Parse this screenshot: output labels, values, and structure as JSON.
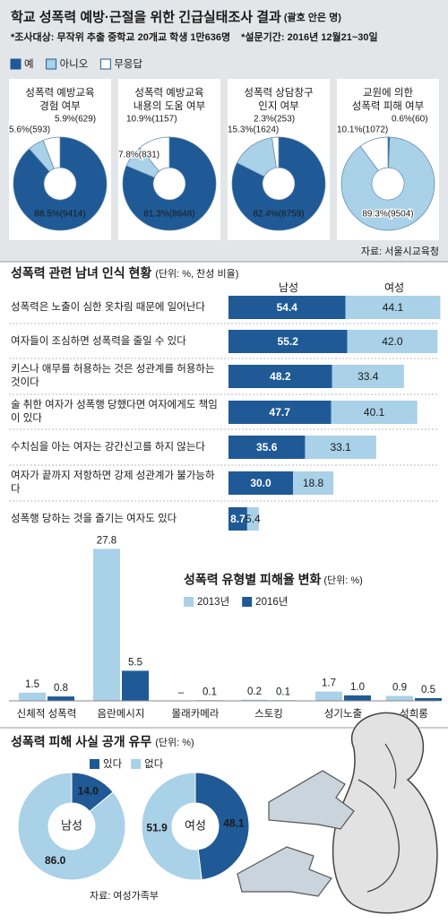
{
  "header": {
    "title": "학교 성폭력 예방·근절을 위한 긴급실태조사 결과",
    "title_note": "(괄호 안은 명)",
    "survey_target": "*조사대상: 무작위 추출 중학교 20개교 학생 1만636명",
    "survey_period": "*설문기간: 2016년 12월21~30일"
  },
  "chart_data": [
    {
      "type": "pie",
      "categories": [
        "예",
        "아니오",
        "무응답"
      ],
      "colors": [
        "#1f5a96",
        "#a9d1e8",
        "#ffffff"
      ],
      "pies": [
        {
          "title": [
            "성폭력 예방교육",
            "경험 여부"
          ],
          "values": [
            88.5,
            5.6,
            5.9
          ],
          "counts": [
            9414,
            593,
            629
          ],
          "value_labels": [
            "88.5%(9414)",
            "5.6%(593)",
            "5.9%(629)"
          ]
        },
        {
          "title": [
            "성폭력 예방교육",
            "내용의 도움 여부"
          ],
          "values": [
            81.3,
            7.8,
            10.9
          ],
          "counts": [
            8648,
            831,
            1157
          ],
          "value_labels": [
            "81.3%(8648)",
            "7.8%(831)",
            "10.9%(1157)"
          ]
        },
        {
          "title": [
            "성폭력 상담창구",
            "인지 여부"
          ],
          "values": [
            82.4,
            15.3,
            2.3
          ],
          "counts": [
            8759,
            1624,
            253
          ],
          "value_labels": [
            "82.4%(8759)",
            "15.3%(1624)",
            "2.3%(253)"
          ]
        },
        {
          "title": [
            "교원에 의한",
            "성폭력 피해 여부"
          ],
          "values": [
            0.6,
            89.3,
            10.1
          ],
          "counts": [
            60,
            9504,
            1072
          ],
          "value_labels": [
            "0.6%(60)",
            "89.3%(9504)",
            "10.1%(1072)"
          ]
        }
      ],
      "source": "자료: 서울시교육청"
    },
    {
      "type": "barh",
      "title": "성폭력 관련 남녀 인식 현황",
      "subtitle": "(단위: %, 찬성 비율)",
      "categories": [
        "성폭력은 노출이 심한 옷차림 때문에 일어난다",
        "여자들이 조심하면 성폭력을 줄일 수 있다",
        "키스나 애무를 허용하는 것은 성관계를 허용하는 것이다",
        "술 취한 여자가 성폭행 당했다면 여자에게도 책임이 있다",
        "수치심을 아는 여자는 강간신고를 하지 않는다",
        "여자가 끝까지 저항하면 강제 성관계가 불가능하다",
        "성폭행 당하는 것을 즐기는 여자도 있다"
      ],
      "series": [
        {
          "name": "남성",
          "color": "#1f5a96",
          "values": [
            54.4,
            55.2,
            48.2,
            47.7,
            35.6,
            30.0,
            8.7
          ],
          "value_labels": [
            "54.4",
            "55.2",
            "48.2",
            "47.7",
            "35.6",
            "30.0",
            "8.7"
          ]
        },
        {
          "name": "여성",
          "color": "#a9d1e8",
          "values": [
            44.1,
            42.0,
            33.4,
            40.1,
            33.1,
            18.8,
            5.4
          ],
          "value_labels": [
            "44.1",
            "42.0",
            "33.4",
            "40.1",
            "33.1",
            "18.8",
            "5.4"
          ]
        }
      ]
    },
    {
      "type": "bar",
      "title": "성폭력 유형별 피해율 변화",
      "subtitle": "(단위: %)",
      "categories": [
        "신체적 성폭력",
        "음란메시지",
        "몰래카메라",
        "스토킹",
        "성기노출",
        "성희롱"
      ],
      "series": [
        {
          "name": "2013년",
          "color": "#a9d1e8",
          "values": [
            1.5,
            27.8,
            null,
            0.2,
            1.7,
            0.9
          ],
          "value_labels": [
            "1.5",
            "27.8",
            "–",
            "0.2",
            "1.7",
            "0.9"
          ]
        },
        {
          "name": "2016년",
          "color": "#1f5a96",
          "values": [
            0.8,
            5.5,
            0.1,
            0.1,
            1.0,
            0.5
          ],
          "value_labels": [
            "0.8",
            "5.5",
            "0.1",
            "0.1",
            "1.0",
            "0.5"
          ]
        }
      ]
    },
    {
      "type": "donut",
      "title": "성폭력 피해 사실 공개 유무",
      "subtitle": "(단위: %)",
      "categories": [
        "있다",
        "없다"
      ],
      "colors": [
        "#1f5a96",
        "#a9d1e8"
      ],
      "donuts": [
        {
          "name": "남성",
          "values": [
            14.0,
            86.0
          ],
          "value_labels": [
            "14.0",
            "86.0"
          ]
        },
        {
          "name": "여성",
          "values": [
            48.1,
            51.9
          ],
          "value_labels": [
            "48.1",
            "51.9"
          ]
        }
      ],
      "source": "자료: 여성가족부"
    }
  ]
}
